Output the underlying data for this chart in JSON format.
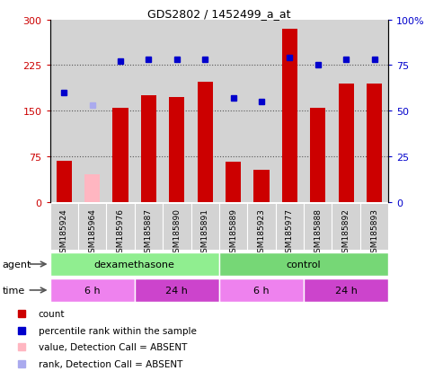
{
  "title": "GDS2802 / 1452499_a_at",
  "samples": [
    "GSM185924",
    "GSM185964",
    "GSM185976",
    "GSM185887",
    "GSM185890",
    "GSM185891",
    "GSM185889",
    "GSM185923",
    "GSM185977",
    "GSM185888",
    "GSM185892",
    "GSM185893"
  ],
  "counts": [
    68,
    null,
    155,
    175,
    173,
    198,
    66,
    52,
    285,
    155,
    195,
    195
  ],
  "counts_absent": [
    null,
    45,
    null,
    null,
    null,
    null,
    null,
    null,
    null,
    null,
    null,
    null
  ],
  "percentile_ranks": [
    60,
    null,
    77,
    78,
    78,
    78,
    57,
    55,
    79,
    75,
    78,
    78
  ],
  "percentile_ranks_absent": [
    null,
    53,
    null,
    null,
    null,
    null,
    null,
    null,
    null,
    null,
    null,
    null
  ],
  "ylim_left": [
    0,
    300
  ],
  "ylim_right": [
    0,
    100
  ],
  "yticks_left": [
    0,
    75,
    150,
    225,
    300
  ],
  "yticks_right": [
    0,
    25,
    50,
    75,
    100
  ],
  "ytick_labels_left": [
    "0",
    "75",
    "150",
    "225",
    "300"
  ],
  "ytick_labels_right": [
    "0",
    "25",
    "50",
    "75",
    "100%"
  ],
  "agent_groups": [
    {
      "label": "dexamethasone",
      "start": 0,
      "end": 6,
      "color": "#90ee90"
    },
    {
      "label": "control",
      "start": 6,
      "end": 12,
      "color": "#76d776"
    }
  ],
  "time_groups": [
    {
      "label": "6 h",
      "start": 0,
      "end": 3,
      "color": "#ee82ee"
    },
    {
      "label": "24 h",
      "start": 3,
      "end": 6,
      "color": "#cc44cc"
    },
    {
      "label": "6 h",
      "start": 6,
      "end": 9,
      "color": "#ee82ee"
    },
    {
      "label": "24 h",
      "start": 9,
      "end": 12,
      "color": "#cc44cc"
    }
  ],
  "bar_color": "#cc0000",
  "bar_absent_color": "#ffb6c1",
  "dot_color": "#0000cc",
  "dot_absent_color": "#aaaaee",
  "grid_color": "#555555",
  "bg_color": "#d3d3d3",
  "plot_bg": "#d3d3d3",
  "legend_items": [
    {
      "color": "#cc0000",
      "label": "count"
    },
    {
      "color": "#0000cc",
      "label": "percentile rank within the sample"
    },
    {
      "color": "#ffb6c1",
      "label": "value, Detection Call = ABSENT"
    },
    {
      "color": "#aaaaee",
      "label": "rank, Detection Call = ABSENT"
    }
  ],
  "label_arrow_color": "#555555"
}
